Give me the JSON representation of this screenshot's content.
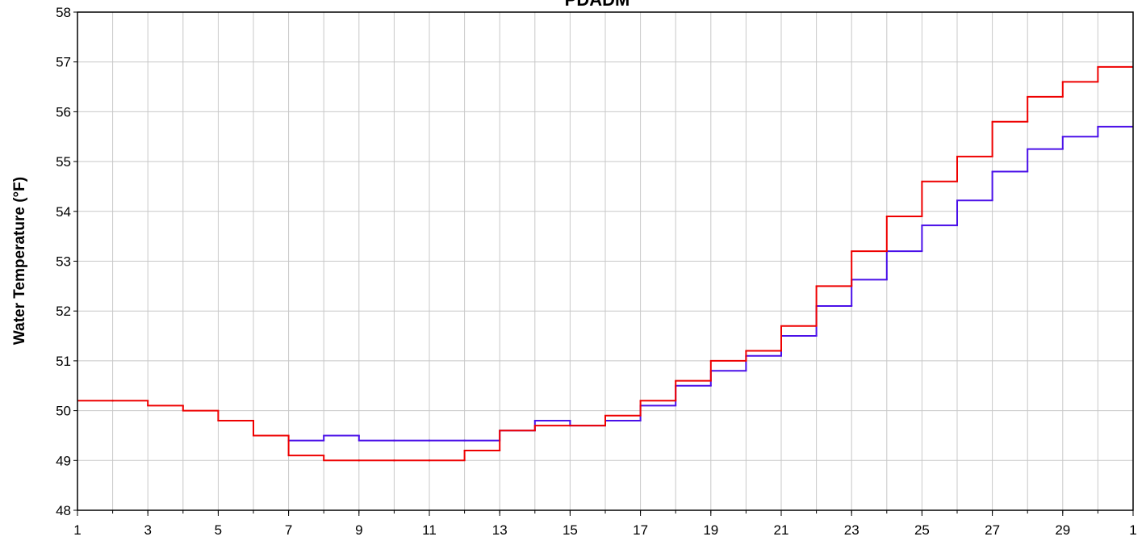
{
  "chart_data": {
    "type": "step",
    "title": "PDADM",
    "y_label": "Water Temperature (°F)",
    "x": [
      1,
      2,
      3,
      4,
      5,
      6,
      7,
      8,
      9,
      10,
      11,
      12,
      13,
      14,
      15,
      16,
      17,
      18,
      19,
      20,
      21,
      22,
      23,
      24,
      25,
      26,
      27,
      28,
      29,
      30
    ],
    "series": [
      {
        "color": "#4a10e8",
        "values": [
          null,
          null,
          null,
          null,
          null,
          null,
          49.4,
          49.5,
          49.4,
          49.4,
          49.4,
          49.4,
          49.6,
          49.8,
          49.7,
          49.8,
          50.1,
          50.5,
          50.8,
          51.1,
          51.5,
          52.1,
          52.63,
          53.2,
          53.72,
          54.22,
          54.8,
          55.25,
          55.5,
          55.7
        ]
      },
      {
        "color": "#ee0000",
        "values": [
          50.2,
          50.2,
          50.1,
          50.0,
          49.8,
          49.5,
          49.1,
          49.0,
          49.0,
          49.0,
          49.0,
          49.2,
          49.6,
          49.7,
          49.7,
          49.9,
          50.2,
          50.6,
          51.0,
          51.2,
          51.7,
          52.5,
          53.2,
          53.9,
          54.6,
          55.1,
          55.8,
          56.3,
          56.6,
          56.9
        ]
      }
    ],
    "xlim": [
      1,
      31
    ],
    "xticks": [
      1,
      3,
      5,
      7,
      9,
      11,
      13,
      15,
      17,
      19,
      21,
      23,
      25,
      27,
      29,
      {
        "value": 31,
        "label": "1"
      }
    ],
    "ylim": [
      48,
      58
    ],
    "yticks": [
      48,
      49,
      50,
      51,
      52,
      53,
      54,
      55,
      56,
      57,
      58
    ],
    "grid": true
  }
}
